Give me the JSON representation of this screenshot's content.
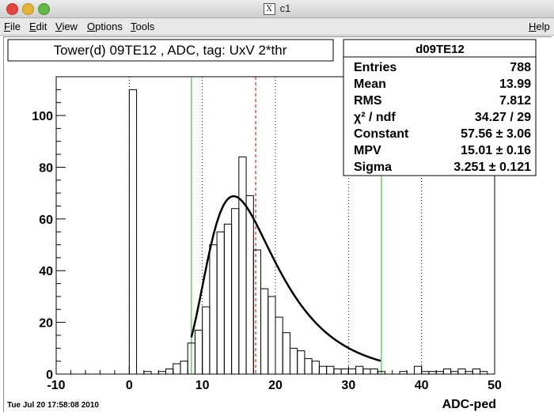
{
  "window": {
    "title": "c1",
    "logo_letter": "X"
  },
  "menu": {
    "file": "File",
    "edit": "Edit",
    "view": "View",
    "options": "Options",
    "tools": "Tools",
    "help": "Help"
  },
  "chart_data": {
    "type": "bar",
    "title": "Tower(d) 09TE12 , ADC, tag: UxV 2*thr",
    "xlabel": "ADC-ped",
    "ylabel": "",
    "xlim": [
      -10,
      50
    ],
    "ylim": [
      0,
      115
    ],
    "xticks": [
      -10,
      0,
      10,
      20,
      30,
      40,
      50
    ],
    "yticks": [
      0,
      20,
      40,
      60,
      80,
      100
    ],
    "grid": "dotted vertical",
    "bin_width": 1,
    "bins": [
      [
        0,
        110
      ],
      [
        2,
        1
      ],
      [
        3,
        0
      ],
      [
        4,
        1
      ],
      [
        5,
        2
      ],
      [
        6,
        4
      ],
      [
        7,
        5
      ],
      [
        8,
        12
      ],
      [
        9,
        17
      ],
      [
        10,
        26
      ],
      [
        11,
        50
      ],
      [
        12,
        55
      ],
      [
        13,
        58
      ],
      [
        14,
        64
      ],
      [
        15,
        84
      ],
      [
        16,
        69
      ],
      [
        17,
        48
      ],
      [
        18,
        33
      ],
      [
        19,
        30
      ],
      [
        20,
        22
      ],
      [
        21,
        16
      ],
      [
        22,
        10
      ],
      [
        23,
        9
      ],
      [
        24,
        6
      ],
      [
        25,
        5
      ],
      [
        26,
        3
      ],
      [
        27,
        3
      ],
      [
        28,
        2
      ],
      [
        29,
        2
      ],
      [
        30,
        2
      ],
      [
        31,
        3
      ],
      [
        32,
        2
      ],
      [
        33,
        2
      ],
      [
        34,
        1
      ],
      [
        37,
        1
      ],
      [
        38,
        0
      ],
      [
        39,
        3
      ],
      [
        40,
        1
      ],
      [
        41,
        1
      ],
      [
        42,
        1
      ],
      [
        43,
        2
      ],
      [
        44,
        1
      ],
      [
        45,
        2
      ],
      [
        46,
        1
      ],
      [
        47,
        2
      ],
      [
        48,
        1
      ]
    ],
    "fit": {
      "type": "landau",
      "constant": 57.56,
      "mpv": 15.01,
      "sigma": 3.251,
      "range": [
        8.5,
        34.5
      ]
    },
    "lines": [
      {
        "x": 8.5,
        "color": "#00cc00",
        "style": "solid"
      },
      {
        "x": 34.5,
        "color": "#00cc00",
        "style": "solid"
      },
      {
        "x": 17.3,
        "color": "#cc0000",
        "style": "dashed"
      }
    ],
    "stats": {
      "header": "d09TE12",
      "rows": [
        {
          "label": "Entries",
          "value": "788"
        },
        {
          "label": "Mean",
          "value": "13.99"
        },
        {
          "label": "RMS",
          "value": "7.812"
        },
        {
          "label": "χ² / ndf",
          "value": "34.27 / 29"
        },
        {
          "label": "Constant",
          "value": "57.56 ± 3.06"
        },
        {
          "label": "MPV",
          "value": "15.01 ± 0.16"
        },
        {
          "label": "Sigma",
          "value": "3.251 ± 0.121"
        }
      ]
    },
    "timestamp": "Tue Jul 20 17:58:08 2010"
  }
}
